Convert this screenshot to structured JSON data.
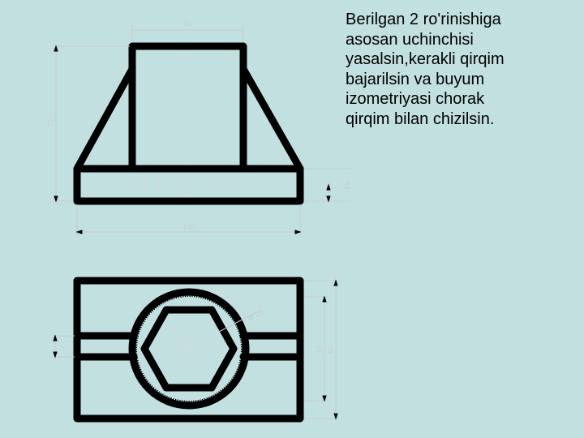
{
  "task_text": {
    "lines": [
      "Berilgan 2 ro'rinishiga",
      "asosan uchinchisi",
      "yasalsin,kerakli qirqim",
      "bajarilsin va buyum",
      "izometriyasi chorak",
      "qirqim bilan chizilsin."
    ]
  },
  "dimensions": {
    "top_width": "50",
    "height": "70",
    "base_thickness": "15",
    "base_width": "100",
    "hex_size": "Ø 25",
    "depth_inner": "10",
    "depth_total": "60"
  },
  "colors": {
    "background": "#c3e0e1",
    "outline": "#000000",
    "dimension": "#c4cbcc"
  }
}
